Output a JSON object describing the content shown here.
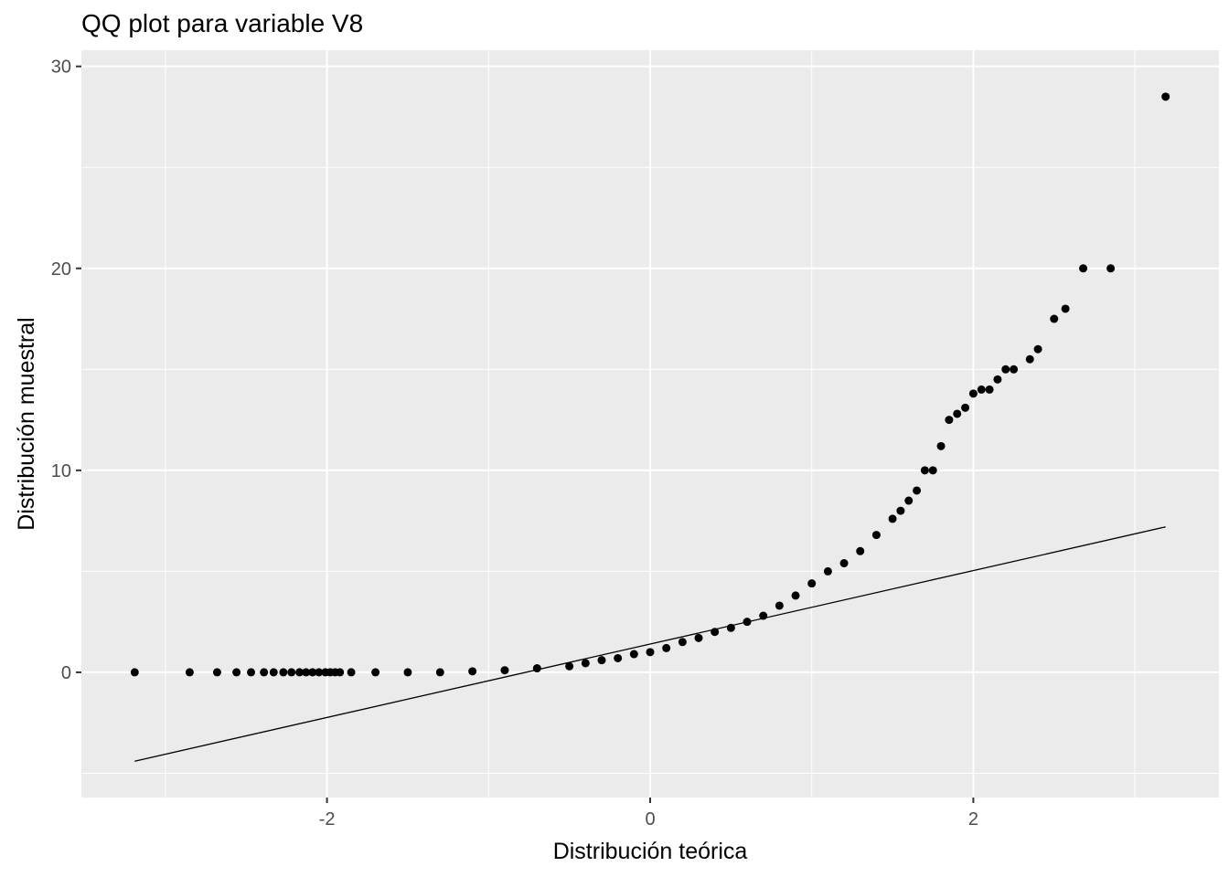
{
  "chart_data": {
    "type": "scatter",
    "title": "QQ plot para variable V8",
    "xlabel": "Distribución teórica",
    "ylabel": "Distribución muestral",
    "xlim": [
      -3.52,
      3.52
    ],
    "ylim": [
      -6.2,
      30.8
    ],
    "x_ticks": [
      -2,
      0,
      2
    ],
    "x_tick_labels": [
      "-2",
      "0",
      "2"
    ],
    "y_ticks": [
      0,
      10,
      20,
      30
    ],
    "y_tick_labels": [
      "0",
      "10",
      "20",
      "30"
    ],
    "grid": true,
    "legend": "none",
    "colors": {
      "panel": "#EBEBEB",
      "grid": "#FFFFFF",
      "points": "#000000",
      "line": "#000000"
    },
    "reference_line": {
      "x": [
        -3.19,
        3.19
      ],
      "y": [
        -4.4,
        7.2
      ]
    },
    "points": [
      [
        -3.19,
        0.0
      ],
      [
        -2.85,
        0.0
      ],
      [
        -2.68,
        0.0
      ],
      [
        -2.56,
        0.0
      ],
      [
        -2.47,
        0.0
      ],
      [
        -2.39,
        0.0
      ],
      [
        -2.33,
        0.0
      ],
      [
        -2.27,
        0.0
      ],
      [
        -2.22,
        0.0
      ],
      [
        -2.17,
        0.0
      ],
      [
        -2.13,
        0.0
      ],
      [
        -2.09,
        0.0
      ],
      [
        -2.05,
        0.0
      ],
      [
        -2.01,
        0.0
      ],
      [
        -1.98,
        0.0
      ],
      [
        -1.95,
        0.0
      ],
      [
        -1.92,
        0.0
      ],
      [
        -1.85,
        0.0
      ],
      [
        -1.7,
        0.0
      ],
      [
        -1.5,
        0.0
      ],
      [
        -1.3,
        0.0
      ],
      [
        -1.1,
        0.05
      ],
      [
        -0.9,
        0.1
      ],
      [
        -0.7,
        0.2
      ],
      [
        -0.5,
        0.3
      ],
      [
        -0.4,
        0.45
      ],
      [
        -0.3,
        0.6
      ],
      [
        -0.2,
        0.7
      ],
      [
        -0.1,
        0.9
      ],
      [
        0.0,
        1.0
      ],
      [
        0.1,
        1.2
      ],
      [
        0.2,
        1.5
      ],
      [
        0.3,
        1.7
      ],
      [
        0.4,
        2.0
      ],
      [
        0.5,
        2.2
      ],
      [
        0.6,
        2.5
      ],
      [
        0.7,
        2.8
      ],
      [
        0.8,
        3.3
      ],
      [
        0.9,
        3.8
      ],
      [
        1.0,
        4.4
      ],
      [
        1.1,
        5.0
      ],
      [
        1.2,
        5.4
      ],
      [
        1.3,
        6.0
      ],
      [
        1.4,
        6.8
      ],
      [
        1.5,
        7.6
      ],
      [
        1.55,
        8.0
      ],
      [
        1.6,
        8.5
      ],
      [
        1.65,
        9.0
      ],
      [
        1.7,
        10.0
      ],
      [
        1.75,
        10.0
      ],
      [
        1.8,
        11.2
      ],
      [
        1.85,
        12.5
      ],
      [
        1.9,
        12.8
      ],
      [
        1.95,
        13.1
      ],
      [
        2.0,
        13.8
      ],
      [
        2.05,
        14.0
      ],
      [
        2.1,
        14.0
      ],
      [
        2.15,
        14.5
      ],
      [
        2.2,
        15.0
      ],
      [
        2.25,
        15.0
      ],
      [
        2.35,
        15.5
      ],
      [
        2.4,
        16.0
      ],
      [
        2.5,
        17.5
      ],
      [
        2.57,
        18.0
      ],
      [
        2.68,
        20.0
      ],
      [
        2.85,
        20.0
      ],
      [
        3.19,
        28.5
      ]
    ]
  }
}
